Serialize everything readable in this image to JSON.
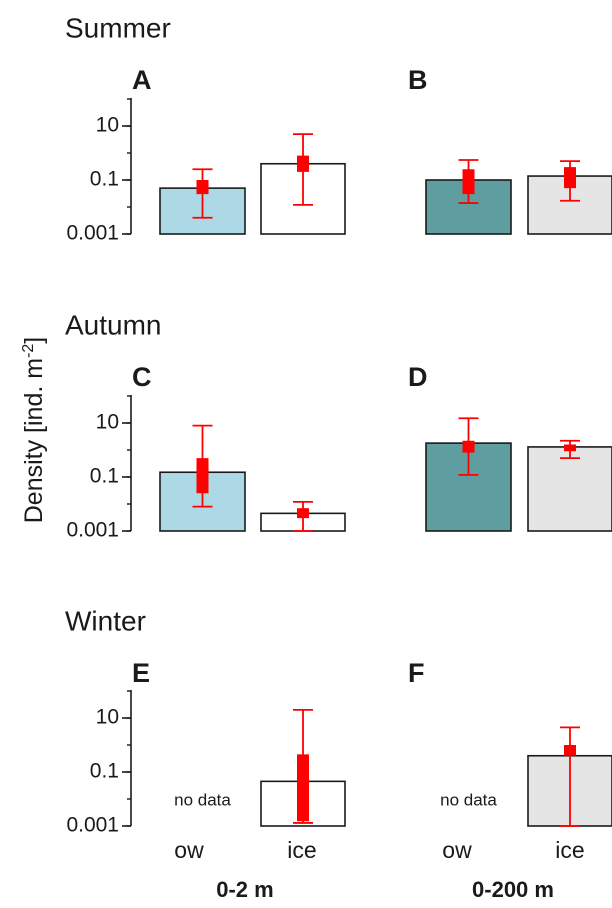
{
  "chart_data": {
    "type": "bar",
    "ylabel": "Density [ind. m",
    "ylabel_sup": "-2",
    "ylabel_close": "]",
    "y_scale": "log",
    "ylim": [
      0.001,
      10
    ],
    "yticks": [
      "10",
      "0.1",
      "0.001"
    ],
    "categories": [
      "ow",
      "ice"
    ],
    "groups": [
      "0-2 m",
      "0-200 m"
    ],
    "no_data_label": "no data",
    "colors": {
      "ow_0_2m": "#add8e6",
      "ice_0_2m": "#ffffff",
      "ow_0_200m": "#5f9ea0",
      "ice_0_200m": "#e5e5e5",
      "error": "#ff0000",
      "bar_stroke": "#1a1a1a"
    },
    "rows": [
      {
        "season": "Summer",
        "panels": [
          {
            "letter": "A",
            "group": "0-2 m",
            "bars": [
              {
                "category": "ow",
                "value": 0.05,
                "err_low": 0.004,
                "err_high": 0.25,
                "box_low": 0.03,
                "box_high": 0.1
              },
              {
                "category": "ice",
                "value": 0.4,
                "err_low": 0.012,
                "err_high": 5,
                "box_low": 0.2,
                "box_high": 0.8
              }
            ]
          },
          {
            "letter": "B",
            "group": "0-200 m",
            "bars": [
              {
                "category": "ow",
                "value": 0.1,
                "err_low": 0.014,
                "err_high": 0.55,
                "box_low": 0.03,
                "box_high": 0.25
              },
              {
                "category": "ice",
                "value": 0.14,
                "err_low": 0.017,
                "err_high": 0.5,
                "box_low": 0.05,
                "box_high": 0.3
              }
            ]
          }
        ]
      },
      {
        "season": "Autumn",
        "panels": [
          {
            "letter": "C",
            "group": "0-2 m",
            "bars": [
              {
                "category": "ow",
                "value": 0.15,
                "err_low": 0.008,
                "err_high": 8,
                "box_low": 0.025,
                "box_high": 0.5
              },
              {
                "category": "ice",
                "value": 0.0045,
                "err_low": 0.001,
                "err_high": 0.012,
                "box_low": 0.003,
                "box_high": 0.007
              }
            ]
          },
          {
            "letter": "D",
            "group": "0-200 m",
            "bars": [
              {
                "category": "ow",
                "value": 1.8,
                "err_low": 0.12,
                "err_high": 15,
                "box_low": 0.8,
                "box_high": 2.2
              },
              {
                "category": "ice",
                "value": 1.3,
                "err_low": 0.5,
                "err_high": 2.2,
                "box_low": 0.9,
                "box_high": 1.6
              }
            ]
          }
        ]
      },
      {
        "season": "Winter",
        "panels": [
          {
            "letter": "E",
            "group": "0-2 m",
            "bars": [
              {
                "category": "ow",
                "value": null
              },
              {
                "category": "ice",
                "value": 0.045,
                "err_low": 0.0013,
                "err_high": 20,
                "box_low": 0.0015,
                "box_high": 0.45
              }
            ]
          },
          {
            "letter": "F",
            "group": "0-200 m",
            "bars": [
              {
                "category": "ow",
                "value": null
              },
              {
                "category": "ice",
                "value": 0.4,
                "err_low": 0.001,
                "err_high": 4.5,
                "box_low": 0.4,
                "box_high": 1.0
              }
            ]
          }
        ]
      }
    ]
  }
}
